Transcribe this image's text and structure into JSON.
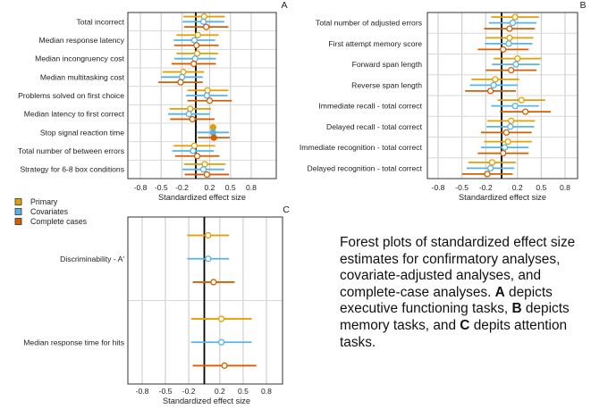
{
  "legend": [
    {
      "label": "Primary",
      "color": "#E69F00"
    },
    {
      "label": "Covariates",
      "color": "#56B4E9"
    },
    {
      "label": "Complete cases",
      "color": "#D55E00"
    }
  ],
  "caption": {
    "part1": "Forest plots of standardized effect size estimates for confirmatory analyses, covariate-adjusted analyses, and complete-case analyses. ",
    "a": "A",
    "part2": " depicts executive functioning tasks, ",
    "b": "B",
    "part3": " depicts memory tasks, and ",
    "c": "C",
    "part4": " depits attention tasks."
  },
  "chart_data": [
    {
      "type": "forest",
      "panel": "A",
      "xlabel": "Standardized effect size",
      "xlim": [
        -1.0,
        1.0
      ],
      "xticks": [
        -0.8,
        -0.5,
        -0.2,
        0.2,
        0.5,
        0.8
      ],
      "reference_line": 0,
      "grid": true,
      "categories": [
        "Total incorrect",
        "Median response latency",
        "Median incongruency cost",
        "Median multitasking cost",
        "Problems solved on first choice",
        "Median latency to first correct",
        "Stop signal reaction time",
        "Total number of between errors",
        "Strategy for 6-8 box conditions"
      ],
      "series": [
        {
          "name": "Primary",
          "color": "#E69F00",
          "estimate": [
            0.12,
            0.03,
            0.02,
            -0.18,
            0.17,
            -0.08,
            0.25,
            -0.02,
            0.13
          ],
          "lower": [
            -0.18,
            -0.28,
            -0.28,
            -0.48,
            -0.12,
            -0.38,
            0.25,
            -0.32,
            -0.17
          ],
          "upper": [
            0.42,
            0.33,
            0.32,
            0.12,
            0.47,
            0.22,
            0.25,
            0.28,
            0.43
          ],
          "filled": [
            false,
            false,
            false,
            false,
            false,
            false,
            true,
            false,
            false
          ]
        },
        {
          "name": "Covariates",
          "color": "#56B4E9",
          "estimate": [
            0.11,
            -0.02,
            -0.01,
            -0.2,
            0.16,
            -0.1,
            0.25,
            -0.04,
            0.11
          ],
          "lower": [
            -0.19,
            -0.32,
            -0.31,
            -0.5,
            -0.14,
            -0.4,
            0.02,
            -0.34,
            -0.19
          ],
          "upper": [
            0.41,
            0.28,
            0.29,
            0.1,
            0.46,
            0.2,
            0.48,
            0.26,
            0.41
          ],
          "filled": [
            false,
            false,
            false,
            false,
            false,
            false,
            true,
            false,
            false
          ]
        },
        {
          "name": "Complete cases",
          "color": "#D55E00",
          "estimate": [
            0.15,
            0.01,
            -0.03,
            -0.22,
            0.2,
            -0.05,
            0.26,
            0.02,
            0.16
          ],
          "lower": [
            -0.17,
            -0.31,
            -0.35,
            -0.54,
            -0.12,
            -0.37,
            0.03,
            -0.3,
            -0.16
          ],
          "upper": [
            0.47,
            0.33,
            0.29,
            0.1,
            0.52,
            0.27,
            0.49,
            0.34,
            0.48
          ],
          "filled": [
            false,
            false,
            false,
            false,
            false,
            false,
            true,
            false,
            false
          ]
        }
      ]
    },
    {
      "type": "forest",
      "panel": "B",
      "xlabel": "Standardized effect size",
      "xlim": [
        -1.0,
        1.0
      ],
      "xticks": [
        -0.8,
        -0.5,
        -0.2,
        0.2,
        0.5,
        0.8
      ],
      "reference_line": 0,
      "grid": true,
      "categories": [
        "Total number of adjusted errors",
        "First attempt memory score",
        "Forward span length",
        "Reverse span length",
        "Immediate recall - total correct",
        "Delayed recall - total correct",
        "Immediate recognition - total correct",
        "Delayed recognition - total correct"
      ],
      "series": [
        {
          "name": "Primary",
          "color": "#E69F00",
          "estimate": [
            0.17,
            0.1,
            0.2,
            -0.08,
            0.25,
            0.12,
            0.08,
            -0.12
          ],
          "lower": [
            -0.13,
            -0.2,
            -0.1,
            -0.38,
            -0.05,
            -0.18,
            -0.22,
            -0.42
          ],
          "upper": [
            0.47,
            0.4,
            0.5,
            0.22,
            0.55,
            0.42,
            0.38,
            0.18
          ]
        },
        {
          "name": "Covariates",
          "color": "#56B4E9",
          "estimate": [
            0.14,
            0.09,
            0.18,
            -0.1,
            0.17,
            0.11,
            0.04,
            -0.14
          ],
          "lower": [
            -0.16,
            -0.21,
            -0.12,
            -0.4,
            -0.13,
            -0.19,
            -0.26,
            -0.44
          ],
          "upper": [
            0.44,
            0.39,
            0.48,
            0.2,
            0.47,
            0.41,
            0.34,
            0.16
          ]
        },
        {
          "name": "Complete cases",
          "color": "#D55E00",
          "estimate": [
            0.1,
            0.02,
            0.12,
            -0.14,
            0.3,
            0.06,
            0.02,
            -0.18
          ],
          "lower": [
            -0.22,
            -0.3,
            -0.2,
            -0.46,
            -0.02,
            -0.26,
            -0.3,
            -0.5
          ],
          "upper": [
            0.42,
            0.34,
            0.44,
            0.18,
            0.62,
            0.38,
            0.34,
            0.14
          ]
        }
      ]
    },
    {
      "type": "forest",
      "panel": "C",
      "xlabel": "Standardized effect size",
      "xlim": [
        -1.0,
        1.0
      ],
      "xticks": [
        -0.8,
        -0.5,
        -0.2,
        0.2,
        0.5,
        0.8
      ],
      "reference_line": 0,
      "grid": true,
      "categories": [
        "Discriminability - A'",
        "Median response time for hits"
      ],
      "series": [
        {
          "name": "Primary",
          "color": "#E69F00",
          "estimate": [
            0.05,
            0.22
          ],
          "lower": [
            -0.22,
            -0.17
          ],
          "upper": [
            0.32,
            0.61
          ]
        },
        {
          "name": "Covariates",
          "color": "#56B4E9",
          "estimate": [
            0.05,
            0.22
          ],
          "lower": [
            -0.22,
            -0.17
          ],
          "upper": [
            0.32,
            0.61
          ]
        },
        {
          "name": "Complete cases",
          "color": "#D55E00",
          "estimate": [
            0.12,
            0.26
          ],
          "lower": [
            -0.15,
            -0.15
          ],
          "upper": [
            0.39,
            0.67
          ]
        }
      ]
    }
  ]
}
